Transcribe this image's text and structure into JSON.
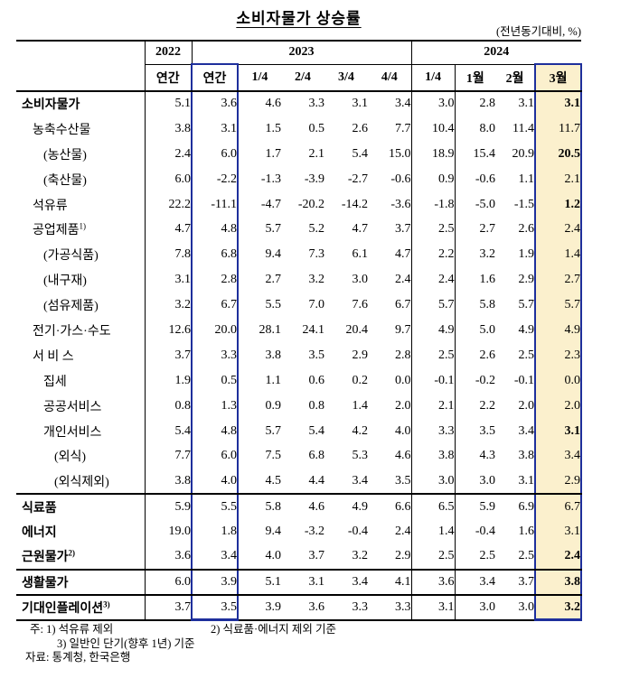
{
  "title": "소비자물가 상승률",
  "unit_note": "(전년동기대비, %)",
  "table": {
    "year_headers": [
      {
        "label": "2022",
        "span": 1
      },
      {
        "label": "2023",
        "span": 5
      },
      {
        "label": "2024",
        "span": 4
      }
    ],
    "period_headers": [
      "연간",
      "연간",
      "1/4",
      "2/4",
      "3/4",
      "4/4",
      "1/4",
      "1월",
      "2월",
      "3월"
    ],
    "rows": [
      {
        "label": "소비자물가",
        "sup": "",
        "indent": 0,
        "bold": true,
        "bold_last": true,
        "values": [
          "5.1",
          "3.6",
          "4.6",
          "3.3",
          "3.1",
          "3.4",
          "3.0",
          "2.8",
          "3.1",
          "3.1"
        ]
      },
      {
        "label": "농축수산물",
        "sup": "",
        "indent": 1,
        "bold": false,
        "bold_last": false,
        "values": [
          "3.8",
          "3.1",
          "1.5",
          "0.5",
          "2.6",
          "7.7",
          "10.4",
          "8.0",
          "11.4",
          "11.7"
        ]
      },
      {
        "label": "(농산물)",
        "sup": "",
        "indent": 2,
        "bold": false,
        "bold_last": true,
        "values": [
          "2.4",
          "6.0",
          "1.7",
          "2.1",
          "5.4",
          "15.0",
          "18.9",
          "15.4",
          "20.9",
          "20.5"
        ]
      },
      {
        "label": "(축산물)",
        "sup": "",
        "indent": 2,
        "bold": false,
        "bold_last": false,
        "values": [
          "6.0",
          "-2.2",
          "-1.3",
          "-3.9",
          "-2.7",
          "-0.6",
          "0.9",
          "-0.6",
          "1.1",
          "2.1"
        ]
      },
      {
        "label": "석유류",
        "sup": "",
        "indent": 1,
        "bold": false,
        "bold_last": true,
        "values": [
          "22.2",
          "-11.1",
          "-4.7",
          "-20.2",
          "-14.2",
          "-3.6",
          "-1.8",
          "-5.0",
          "-1.5",
          "1.2"
        ]
      },
      {
        "label": "공업제품",
        "sup": "1)",
        "indent": 1,
        "bold": false,
        "bold_last": false,
        "values": [
          "4.7",
          "4.8",
          "5.7",
          "5.2",
          "4.7",
          "3.7",
          "2.5",
          "2.7",
          "2.6",
          "2.4"
        ]
      },
      {
        "label": "(가공식품)",
        "sup": "",
        "indent": 2,
        "bold": false,
        "bold_last": false,
        "values": [
          "7.8",
          "6.8",
          "9.4",
          "7.3",
          "6.1",
          "4.7",
          "2.2",
          "3.2",
          "1.9",
          "1.4"
        ]
      },
      {
        "label": "(내구재)",
        "sup": "",
        "indent": 2,
        "bold": false,
        "bold_last": false,
        "values": [
          "3.1",
          "2.8",
          "2.7",
          "3.2",
          "3.0",
          "2.4",
          "2.4",
          "1.6",
          "2.9",
          "2.7"
        ]
      },
      {
        "label": "(섬유제품)",
        "sup": "",
        "indent": 2,
        "bold": false,
        "bold_last": false,
        "values": [
          "3.2",
          "6.7",
          "5.5",
          "7.0",
          "7.6",
          "6.7",
          "5.7",
          "5.8",
          "5.7",
          "5.7"
        ]
      },
      {
        "label": "전기·가스·수도",
        "sup": "",
        "indent": 1,
        "bold": false,
        "bold_last": false,
        "values": [
          "12.6",
          "20.0",
          "28.1",
          "24.1",
          "20.4",
          "9.7",
          "4.9",
          "5.0",
          "4.9",
          "4.9"
        ]
      },
      {
        "label": "서 비 스",
        "sup": "",
        "indent": 1,
        "bold": false,
        "bold_last": false,
        "values": [
          "3.7",
          "3.3",
          "3.8",
          "3.5",
          "2.9",
          "2.8",
          "2.5",
          "2.6",
          "2.5",
          "2.3"
        ]
      },
      {
        "label": "집세",
        "sup": "",
        "indent": 2,
        "bold": false,
        "bold_last": false,
        "values": [
          "1.9",
          "0.5",
          "1.1",
          "0.6",
          "0.2",
          "0.0",
          "-0.1",
          "-0.2",
          "-0.1",
          "0.0"
        ]
      },
      {
        "label": "공공서비스",
        "sup": "",
        "indent": 2,
        "bold": false,
        "bold_last": false,
        "values": [
          "0.8",
          "1.3",
          "0.9",
          "0.8",
          "1.4",
          "2.0",
          "2.1",
          "2.2",
          "2.0",
          "2.0"
        ]
      },
      {
        "label": "개인서비스",
        "sup": "",
        "indent": 2,
        "bold": false,
        "bold_last": true,
        "values": [
          "5.4",
          "4.8",
          "5.7",
          "5.4",
          "4.2",
          "4.0",
          "3.3",
          "3.5",
          "3.4",
          "3.1"
        ]
      },
      {
        "label": "(외식)",
        "sup": "",
        "indent": 3,
        "bold": false,
        "bold_last": false,
        "values": [
          "7.7",
          "6.0",
          "7.5",
          "6.8",
          "5.3",
          "4.6",
          "3.8",
          "4.3",
          "3.8",
          "3.4"
        ]
      },
      {
        "label": "(외식제외)",
        "sup": "",
        "indent": 3,
        "bold": false,
        "bold_last": false,
        "section_break_after": true,
        "values": [
          "3.8",
          "4.0",
          "4.5",
          "4.4",
          "3.4",
          "3.5",
          "3.0",
          "3.0",
          "3.1",
          "2.9"
        ]
      },
      {
        "label": "식료품",
        "sup": "",
        "indent": 0,
        "bold": true,
        "bold_last": false,
        "values": [
          "5.9",
          "5.5",
          "5.8",
          "4.6",
          "4.9",
          "6.6",
          "6.5",
          "5.9",
          "6.9",
          "6.7"
        ]
      },
      {
        "label": "에너지",
        "sup": "",
        "indent": 0,
        "bold": true,
        "bold_last": false,
        "values": [
          "19.0",
          "1.8",
          "9.4",
          "-3.2",
          "-0.4",
          "2.4",
          "1.4",
          "-0.4",
          "1.6",
          "3.1"
        ]
      },
      {
        "label": "근원물가",
        "sup": "2)",
        "indent": 0,
        "bold": true,
        "bold_last": true,
        "section_break_after": true,
        "values": [
          "3.6",
          "3.4",
          "4.0",
          "3.7",
          "3.2",
          "2.9",
          "2.5",
          "2.5",
          "2.5",
          "2.4"
        ]
      },
      {
        "label": "생활물가",
        "sup": "",
        "indent": 0,
        "bold": true,
        "bold_last": true,
        "section_break_after": true,
        "values": [
          "6.0",
          "3.9",
          "5.1",
          "3.1",
          "3.4",
          "4.1",
          "3.6",
          "3.4",
          "3.7",
          "3.8"
        ]
      },
      {
        "label": "기대인플레이션",
        "sup": "3)",
        "indent": 0,
        "bold": true,
        "bold_last": true,
        "values": [
          "3.7",
          "3.5",
          "3.9",
          "3.6",
          "3.3",
          "3.3",
          "3.1",
          "3.0",
          "3.0",
          "3.2"
        ]
      }
    ]
  },
  "notes": {
    "line1_left": "주: 1) 석유류 제외",
    "line1_right": "2) 식료품·에너지 제외 기준",
    "line2": "3) 일반인 단기(향후 1년) 기준",
    "line3": "자료: 통계청, 한국은행"
  },
  "colors": {
    "highlight_border": "#1e2f9c",
    "highlight_bg": "#fbf0cd"
  }
}
